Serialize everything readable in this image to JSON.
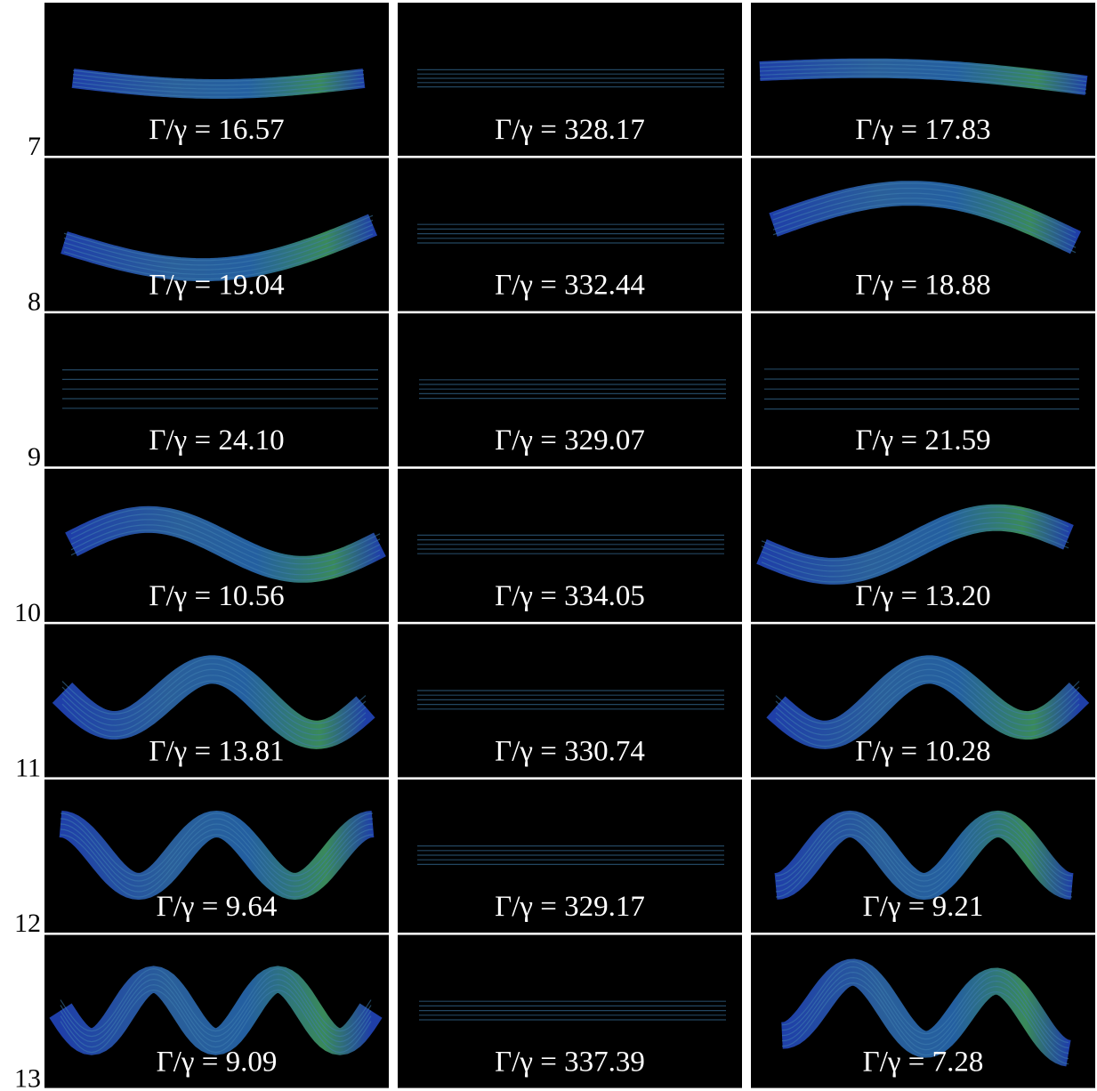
{
  "rows": [
    {
      "label": "7",
      "panels": [
        {
          "caption": "Γ/γ = 16.57"
        },
        {
          "caption": "Γ/γ = 328.17"
        },
        {
          "caption": "Γ/γ = 17.83"
        }
      ]
    },
    {
      "label": "8",
      "panels": [
        {
          "caption": "Γ/γ = 19.04"
        },
        {
          "caption": "Γ/γ = 332.44"
        },
        {
          "caption": "Γ/γ = 18.88"
        }
      ]
    },
    {
      "label": "9",
      "panels": [
        {
          "caption": "Γ/γ = 24.10"
        },
        {
          "caption": "Γ/γ = 329.07"
        },
        {
          "caption": "Γ/γ = 21.59"
        }
      ]
    },
    {
      "label": "10",
      "panels": [
        {
          "caption": "Γ/γ = 10.56"
        },
        {
          "caption": "Γ/γ = 334.05"
        },
        {
          "caption": "Γ/γ = 13.20"
        }
      ]
    },
    {
      "label": "11",
      "panels": [
        {
          "caption": "Γ/γ = 13.81"
        },
        {
          "caption": "Γ/γ = 330.74"
        },
        {
          "caption": "Γ/γ = 10.28"
        }
      ]
    },
    {
      "label": "12",
      "panels": [
        {
          "caption": "Γ/γ = 9.64"
        },
        {
          "caption": "Γ/γ = 329.17"
        },
        {
          "caption": "Γ/γ = 9.21"
        }
      ]
    },
    {
      "label": "13",
      "panels": [
        {
          "caption": "Γ/γ = 9.09"
        },
        {
          "caption": "Γ/γ = 337.39"
        },
        {
          "caption": "Γ/γ = 7.28"
        }
      ]
    }
  ]
}
